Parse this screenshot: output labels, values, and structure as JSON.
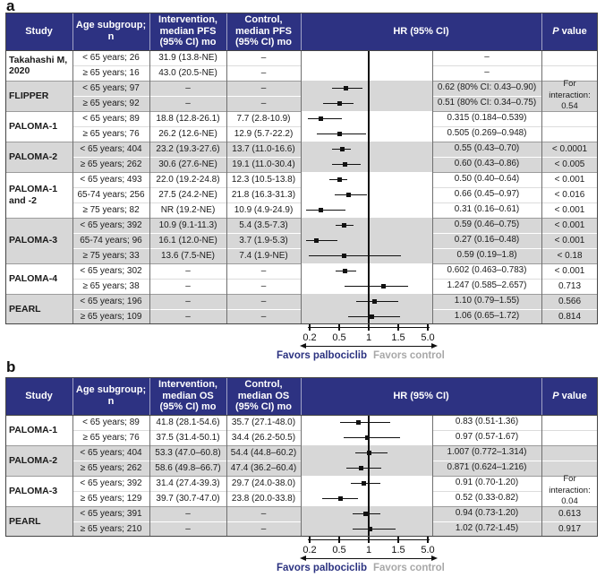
{
  "colors": {
    "header_bg": "#2d3282",
    "stripe_gray": "#d7d7d7",
    "favors_left_color": "#2b3280",
    "favors_right_color": "#a8a8a8",
    "marker_color": "#111111"
  },
  "panels": [
    {
      "label": "a",
      "headers": {
        "study": "Study",
        "age": "Age subgroup;\nn",
        "intervention": "Intervention,\nmedian PFS\n(95% CI) mo",
        "control": "Control,\nmedian PFS\n(95% CI) mo",
        "hr": "HR (95% CI)",
        "p": "P value"
      },
      "axis": {
        "tick_labels": [
          "0.2",
          "0.5",
          "1",
          "1.5",
          "5.0"
        ],
        "tick_values": [
          0.2,
          0.5,
          1,
          1.5,
          5
        ],
        "ref_value": 1
      },
      "favors_left": "Favors palbociclib",
      "favors_right": "Favors control",
      "groups": [
        {
          "study": "Takahashi M, 2020",
          "rows": [
            {
              "age": "< 65 years; 26",
              "intervention": "31.9 (13.8-NE)",
              "control": "–",
              "hr_text": "–",
              "p": "",
              "hr": null,
              "lo": null,
              "hi": null
            },
            {
              "age": "≥ 65 years; 16",
              "intervention": "43.0 (20.5-NE)",
              "control": "–",
              "hr_text": "–",
              "p": "",
              "hr": null,
              "lo": null,
              "hi": null
            }
          ]
        },
        {
          "study": "FLIPPER",
          "p_group": "For interaction:\n0.54",
          "rows": [
            {
              "age": "< 65 years; 97",
              "intervention": "–",
              "control": "–",
              "hr_text": "0.62 (80% CI: 0.43–0.90)",
              "hr": 0.62,
              "lo": 0.43,
              "hi": 0.9
            },
            {
              "age": "≥ 65 years; 92",
              "intervention": "–",
              "control": "–",
              "hr_text": "0.51 (80% CI: 0.34–0.75)",
              "hr": 0.51,
              "lo": 0.34,
              "hi": 0.75
            }
          ]
        },
        {
          "study": "PALOMA-1",
          "rows": [
            {
              "age": "< 65 years; 89",
              "intervention": "18.8 (12.8-26.1)",
              "control": "7.7 (2.8-10.9)",
              "hr_text": "0.315 (0.184–0.539)",
              "p": "",
              "hr": 0.315,
              "lo": 0.184,
              "hi": 0.539
            },
            {
              "age": "≥ 65 years; 76",
              "intervention": "26.2 (12.6-NE)",
              "control": "12.9 (5.7-22.2)",
              "hr_text": "0.505 (0.269–0.948)",
              "p": "",
              "hr": 0.505,
              "lo": 0.269,
              "hi": 0.948
            }
          ]
        },
        {
          "study": "PALOMA-2",
          "rows": [
            {
              "age": "< 65 years; 404",
              "intervention": "23.2 (19.3-27.6)",
              "control": "13.7 (11.0-16.6)",
              "hr_text": "0.55 (0.43–0.70)",
              "p": "< 0.0001",
              "hr": 0.55,
              "lo": 0.43,
              "hi": 0.7
            },
            {
              "age": "≥ 65 years; 262",
              "intervention": "30.6 (27.6-NE)",
              "control": "19.1 (11.0-30.4)",
              "hr_text": "0.60 (0.43–0.86)",
              "p": "< 0.005",
              "hr": 0.6,
              "lo": 0.43,
              "hi": 0.86
            }
          ]
        },
        {
          "study": "PALOMA-1 and -2",
          "rows": [
            {
              "age": "< 65 years; 493",
              "intervention": "22.0 (19.2-24.8)",
              "control": "12.3 (10.5-13.8)",
              "hr_text": "0.50 (0.40–0.64)",
              "p": "< 0.001",
              "hr": 0.5,
              "lo": 0.4,
              "hi": 0.64
            },
            {
              "age": "65-74 years; 256",
              "intervention": "27.5 (24.2-NE)",
              "control": "21.8 (16.3-31.3)",
              "hr_text": "0.66 (0.45–0.97)",
              "p": "< 0.016",
              "hr": 0.66,
              "lo": 0.45,
              "hi": 0.97
            },
            {
              "age": "≥ 75 years; 82",
              "intervention": "NR (19.2-NE)",
              "control": "10.9 (4.9-24.9)",
              "hr_text": "0.31 (0.16–0.61)",
              "p": "< 0.001",
              "hr": 0.31,
              "lo": 0.16,
              "hi": 0.61
            }
          ]
        },
        {
          "study": "PALOMA-3",
          "rows": [
            {
              "age": "< 65 years; 392",
              "intervention": "10.9 (9.1-11.3)",
              "control": "5.4 (3.5-7.3)",
              "hr_text": "0.59 (0.46–0.75)",
              "p": "< 0.001",
              "hr": 0.59,
              "lo": 0.46,
              "hi": 0.75
            },
            {
              "age": "65-74 years; 96",
              "intervention": "16.1 (12.0-NE)",
              "control": "3.7 (1.9-5.3)",
              "hr_text": "0.27 (0.16–0.48)",
              "p": "< 0.001",
              "hr": 0.27,
              "lo": 0.16,
              "hi": 0.48
            },
            {
              "age": "≥ 75 years; 33",
              "intervention": "13.6 (7.5-NE)",
              "control": "7.4 (1.9-NE)",
              "hr_text": "0.59 (0.19–1.8)",
              "p": "< 0.18",
              "hr": 0.59,
              "lo": 0.19,
              "hi": 1.8
            }
          ]
        },
        {
          "study": "PALOMA-4",
          "rows": [
            {
              "age": "< 65 years; 302",
              "intervention": "–",
              "control": "–",
              "hr_text": "0.602 (0.463–0.783)",
              "p": "< 0.001",
              "hr": 0.602,
              "lo": 0.463,
              "hi": 0.783
            },
            {
              "age": "≥ 65 years; 38",
              "intervention": "–",
              "control": "–",
              "hr_text": "1.247 (0.585–2.657)",
              "p": "0.713",
              "hr": 1.247,
              "lo": 0.585,
              "hi": 2.657
            }
          ]
        },
        {
          "study": "PEARL",
          "rows": [
            {
              "age": "< 65 years; 196",
              "intervention": "–",
              "control": "–",
              "hr_text": "1.10 (0.79–1.55)",
              "p": "0.566",
              "hr": 1.1,
              "lo": 0.79,
              "hi": 1.55
            },
            {
              "age": "≥ 65 years; 109",
              "intervention": "–",
              "control": "–",
              "hr_text": "1.06 (0.65–1.72)",
              "p": "0.814",
              "hr": 1.06,
              "lo": 0.65,
              "hi": 1.72
            }
          ]
        }
      ]
    },
    {
      "label": "b",
      "headers": {
        "study": "Study",
        "age": "Age subgroup;\nn",
        "intervention": "Intervention,\nmedian OS\n(95% CI) mo",
        "control": "Control,\nmedian OS\n(95% CI) mo",
        "hr": "HR (95% CI)",
        "p": "P value"
      },
      "axis": {
        "tick_labels": [
          "0.2",
          "0.5",
          "1",
          "1.5",
          "5.0"
        ],
        "tick_values": [
          0.2,
          0.5,
          1,
          1.5,
          5
        ],
        "ref_value": 1
      },
      "favors_left": "Favors palbociclib",
      "favors_right": "Favors control",
      "groups": [
        {
          "study": "PALOMA-1",
          "rows": [
            {
              "age": "< 65 years; 89",
              "intervention": "41.8 (28.1-54.6)",
              "control": "35.7 (27.1-48.0)",
              "hr_text": "0.83 (0.51-1.36)",
              "p": "",
              "hr": 0.83,
              "lo": 0.51,
              "hi": 1.36
            },
            {
              "age": "≥ 65 years; 76",
              "intervention": "37.5 (31.4-50.1)",
              "control": "34.4 (26.2-50.5)",
              "hr_text": "0.97 (0.57-1.67)",
              "p": "",
              "hr": 0.97,
              "lo": 0.57,
              "hi": 1.67
            }
          ]
        },
        {
          "study": "PALOMA-2",
          "rows": [
            {
              "age": "< 65 years; 404",
              "intervention": "53.3 (47.0–60.8)",
              "control": "54.4 (44.8–60.2)",
              "hr_text": "1.007 (0.772–1.314)",
              "p": "",
              "hr": 1.007,
              "lo": 0.772,
              "hi": 1.314
            },
            {
              "age": "≥ 65 years; 262",
              "intervention": "58.6 (49.8–66.7)",
              "control": "47.4 (36.2–60.4)",
              "hr_text": "0.871 (0.624–1.216)",
              "p": "",
              "hr": 0.871,
              "lo": 0.624,
              "hi": 1.216
            }
          ]
        },
        {
          "study": "PALOMA-3",
          "p_group": "For interaction:\n0.04",
          "rows": [
            {
              "age": "< 65 years; 392",
              "intervention": "31.4 (27.4-39.3)",
              "control": "29.7 (24.0-38.0)",
              "hr_text": "0.91 (0.70-1.20)",
              "hr": 0.91,
              "lo": 0.7,
              "hi": 1.2
            },
            {
              "age": "≥ 65 years; 129",
              "intervention": "39.7 (30.7-47.0)",
              "control": "23.8 (20.0-33.8)",
              "hr_text": "0.52 (0.33-0.82)",
              "hr": 0.52,
              "lo": 0.33,
              "hi": 0.82
            }
          ]
        },
        {
          "study": "PEARL",
          "rows": [
            {
              "age": "< 65 years; 391",
              "intervention": "–",
              "control": "–",
              "hr_text": "0.94 (0.73-1.20)",
              "p": "0.613",
              "hr": 0.94,
              "lo": 0.73,
              "hi": 1.2
            },
            {
              "age": "≥ 65 years; 210",
              "intervention": "–",
              "control": "–",
              "hr_text": "1.02 (0.72-1.45)",
              "p": "0.917",
              "hr": 1.02,
              "lo": 0.72,
              "hi": 1.45
            }
          ]
        }
      ]
    }
  ],
  "chart_data": [
    {
      "type": "scatter",
      "title": "a: Hazard ratios for PFS by age subgroup (forest plot)",
      "xlabel": "HR (95% CI)",
      "x_ticks": [
        0.2,
        0.5,
        1,
        1.5,
        5.0
      ],
      "reference_line": 1,
      "legend": [
        "Favors palbociclib (left)",
        "Favors control (right)"
      ],
      "points": [
        {
          "label": "FLIPPER; < 65 years",
          "hr": 0.62,
          "lo": 0.43,
          "hi": 0.9
        },
        {
          "label": "FLIPPER; ≥ 65 years",
          "hr": 0.51,
          "lo": 0.34,
          "hi": 0.75
        },
        {
          "label": "PALOMA-1; < 65 years",
          "hr": 0.315,
          "lo": 0.184,
          "hi": 0.539
        },
        {
          "label": "PALOMA-1; ≥ 65 years",
          "hr": 0.505,
          "lo": 0.269,
          "hi": 0.948
        },
        {
          "label": "PALOMA-2; < 65 years",
          "hr": 0.55,
          "lo": 0.43,
          "hi": 0.7
        },
        {
          "label": "PALOMA-2; ≥ 65 years",
          "hr": 0.6,
          "lo": 0.43,
          "hi": 0.86
        },
        {
          "label": "PALOMA-1 and -2; < 65 years",
          "hr": 0.5,
          "lo": 0.4,
          "hi": 0.64
        },
        {
          "label": "PALOMA-1 and -2; 65-74 years",
          "hr": 0.66,
          "lo": 0.45,
          "hi": 0.97
        },
        {
          "label": "PALOMA-1 and -2; ≥ 75 years",
          "hr": 0.31,
          "lo": 0.16,
          "hi": 0.61
        },
        {
          "label": "PALOMA-3; < 65 years",
          "hr": 0.59,
          "lo": 0.46,
          "hi": 0.75
        },
        {
          "label": "PALOMA-3; 65-74 years",
          "hr": 0.27,
          "lo": 0.16,
          "hi": 0.48
        },
        {
          "label": "PALOMA-3; ≥ 75 years",
          "hr": 0.59,
          "lo": 0.19,
          "hi": 1.8
        },
        {
          "label": "PALOMA-4; < 65 years",
          "hr": 0.602,
          "lo": 0.463,
          "hi": 0.783
        },
        {
          "label": "PALOMA-4; ≥ 65 years",
          "hr": 1.247,
          "lo": 0.585,
          "hi": 2.657
        },
        {
          "label": "PEARL; < 65 years",
          "hr": 1.1,
          "lo": 0.79,
          "hi": 1.55
        },
        {
          "label": "PEARL; ≥ 65 years",
          "hr": 1.06,
          "lo": 0.65,
          "hi": 1.72
        }
      ]
    },
    {
      "type": "scatter",
      "title": "b: Hazard ratios for OS by age subgroup (forest plot)",
      "xlabel": "HR (95% CI)",
      "x_ticks": [
        0.2,
        0.5,
        1,
        1.5,
        5.0
      ],
      "reference_line": 1,
      "legend": [
        "Favors palbociclib (left)",
        "Favors control (right)"
      ],
      "points": [
        {
          "label": "PALOMA-1; < 65 years",
          "hr": 0.83,
          "lo": 0.51,
          "hi": 1.36
        },
        {
          "label": "PALOMA-1; ≥ 65 years",
          "hr": 0.97,
          "lo": 0.57,
          "hi": 1.67
        },
        {
          "label": "PALOMA-2; < 65 years",
          "hr": 1.007,
          "lo": 0.772,
          "hi": 1.314
        },
        {
          "label": "PALOMA-2; ≥ 65 years",
          "hr": 0.871,
          "lo": 0.624,
          "hi": 1.216
        },
        {
          "label": "PALOMA-3; < 65 years",
          "hr": 0.91,
          "lo": 0.7,
          "hi": 1.2
        },
        {
          "label": "PALOMA-3; ≥ 65 years",
          "hr": 0.52,
          "lo": 0.33,
          "hi": 0.82
        },
        {
          "label": "PEARL; < 65 years",
          "hr": 0.94,
          "lo": 0.73,
          "hi": 1.2
        },
        {
          "label": "PEARL; ≥ 65 years",
          "hr": 1.02,
          "lo": 0.72,
          "hi": 1.45
        }
      ]
    }
  ]
}
